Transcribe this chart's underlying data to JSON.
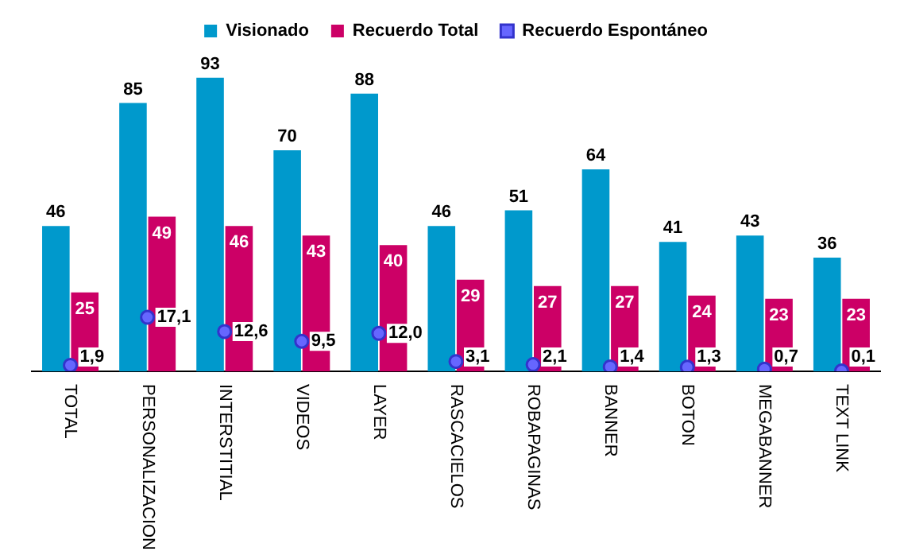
{
  "chart_data": {
    "type": "bar",
    "categories": [
      "TOTAL",
      "PERSONALIZACION",
      "INTERSTITIAL",
      "VIDEOS",
      "LAYER",
      "RASCACIELOS",
      "ROBAPAGINAS",
      "BANNER",
      "BOTON",
      "MEGABANNER",
      "TEXT LINK"
    ],
    "series": [
      {
        "name": "Visionado",
        "color": "#0099cc",
        "values": [
          46,
          85,
          93,
          70,
          88,
          46,
          51,
          64,
          41,
          43,
          36
        ],
        "value_labels": [
          "46",
          "85",
          "93",
          "70",
          "88",
          "46",
          "51",
          "64",
          "41",
          "43",
          "36"
        ]
      },
      {
        "name": "Recuerdo Total",
        "color": "#cc0066",
        "values": [
          25,
          49,
          46,
          43,
          40,
          29,
          27,
          27,
          24,
          23,
          23
        ],
        "value_labels": [
          "25",
          "49",
          "46",
          "43",
          "40",
          "29",
          "27",
          "27",
          "24",
          "23",
          "23"
        ]
      },
      {
        "name": "Recuerdo Espontáneo",
        "type": "scatter",
        "color": "#6666ff",
        "x": [
          "TOTAL",
          "PERSONALIZACION",
          "INTERSTITIAL",
          "VIDEOS",
          "LAYER",
          "RASCACIELOS",
          "ROBAPAGINAS",
          "BANNER",
          "BOTON",
          "MEGABANNER",
          "TEXT LINK"
        ],
        "values": [
          1.9,
          17.1,
          12.6,
          9.5,
          12.0,
          3.1,
          2.1,
          1.4,
          1.3,
          0.7,
          0.1
        ],
        "value_labels": [
          "1,9",
          "17,1",
          "12,6",
          "9,5",
          "12,0",
          "3,1",
          "2,1",
          "1,4",
          "1,3",
          "0,7",
          "0,1"
        ]
      }
    ],
    "legend": "top",
    "marker": "circle",
    "grid": false
  }
}
